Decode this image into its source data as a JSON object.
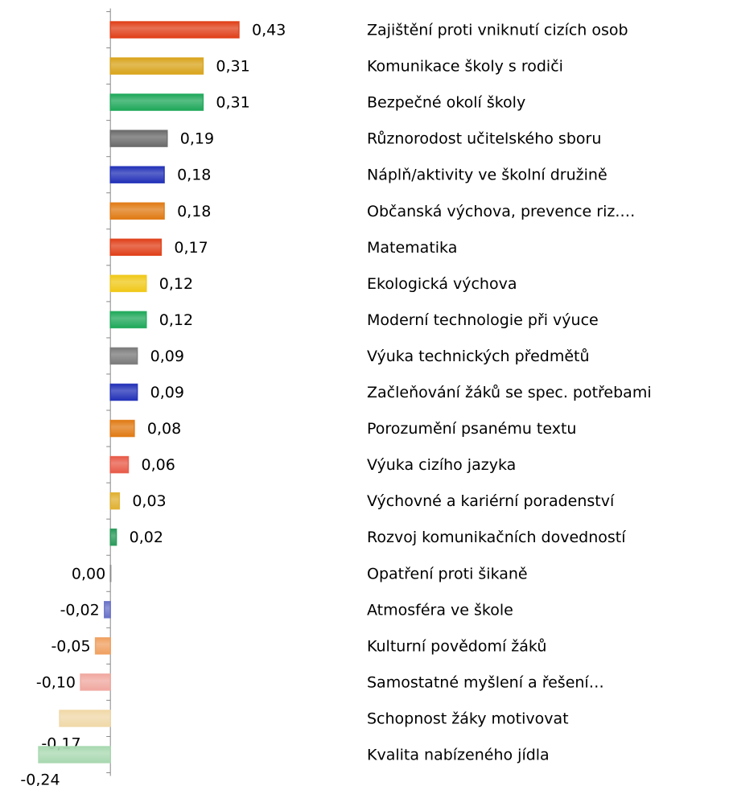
{
  "chart_data": {
    "type": "hbar",
    "categories": [
      "Zajištění proti vniknutí cizích osob",
      "Komunikace školy s rodiči",
      "Bezpečné okolí školy",
      "Různorodost učitelského sboru",
      "Náplň/aktivity ve školní družině",
      "Občanská výchova, prevence riz.…",
      "Matematika",
      "Ekologická výchova",
      "Moderní technologie při výuce",
      "Výuka technických předmětů",
      "Začleňování žáků se spec. potřebami",
      "Porozumění psanému textu",
      "Výuka cizího jazyka",
      "Výchovné a kariérní poradenství",
      "Rozvoj komunikačních dovedností",
      "Opatření proti šikaně",
      "Atmosféra ve škole",
      "Kulturní povědomí žáků",
      "Samostatné myšlení a řešení…",
      "Schopnost žáky motivovat",
      "Kvalita nabízeného jídla"
    ],
    "values": [
      0.43,
      0.31,
      0.31,
      0.19,
      0.18,
      0.18,
      0.17,
      0.12,
      0.12,
      0.09,
      0.09,
      0.08,
      0.06,
      0.03,
      0.02,
      0.0,
      -0.02,
      -0.05,
      -0.1,
      -0.17,
      -0.24
    ],
    "value_labels": [
      "0,43",
      "0,31",
      "0,31",
      "0,19",
      "0,18",
      "0,18",
      "0,17",
      "0,12",
      "0,12",
      "0,09",
      "0,09",
      "0,08",
      "0,06",
      "0,03",
      "0,02",
      "0,00",
      "-0,02",
      "-0,05",
      "-0,10",
      "-0,17",
      "-0,24"
    ],
    "colors": [
      "#e0401a",
      "#d9a41c",
      "#1fa85a",
      "#6a6a6a",
      "#2231b8",
      "#e07a14",
      "#e0401a",
      "#f0c818",
      "#1fa85a",
      "#7a7a7a",
      "#2231b8",
      "#e07a14",
      "#e85a48",
      "#e0b030",
      "#2a9a5a",
      "#888888",
      "#6a72c8",
      "#f0a060",
      "#f0a8a0",
      "#f0d8a8",
      "#a8d8b0"
    ],
    "xlim": [
      -0.24,
      0.43
    ]
  }
}
